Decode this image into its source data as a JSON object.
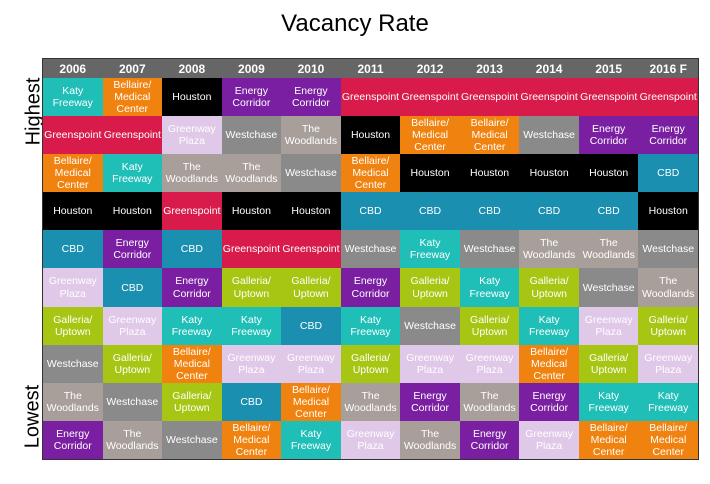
{
  "chart_data": {
    "type": "table",
    "title": "Vacancy Rate",
    "highest_label": "Highest",
    "lowest_label": "Lowest",
    "columns": [
      "2006",
      "2007",
      "2008",
      "2009",
      "2010",
      "2011",
      "2012",
      "2013",
      "2014",
      "2015",
      "2016 F"
    ],
    "rankings": [
      [
        "Katy\nFreeway",
        "Bellaire/\nMedical\nCenter",
        "Houston",
        "Energy\nCorridor",
        "Energy\nCorridor",
        "Greenspoint",
        "Greenspoint",
        "Greenspoint",
        "Greenspoint",
        "Greenspoint",
        "Greenspoint"
      ],
      [
        "Greenspoint",
        "Greenspoint",
        "Greenway\nPlaza",
        "Westchase",
        "The\nWoodlands",
        "Houston",
        "Bellaire/\nMedical\nCenter",
        "Bellaire/\nMedical\nCenter",
        "Westchase",
        "Energy\nCorridor",
        "Energy\nCorridor"
      ],
      [
        "Bellaire/\nMedical\nCenter",
        "Katy\nFreeway",
        "The\nWoodlands",
        "The\nWoodlands",
        "Westchase",
        "Bellaire/\nMedical\nCenter",
        "Houston",
        "Houston",
        "Houston",
        "Houston",
        "CBD"
      ],
      [
        "Houston",
        "Houston",
        "Greenspoint",
        "Houston",
        "Houston",
        "CBD",
        "CBD",
        "CBD",
        "CBD",
        "CBD",
        "Houston"
      ],
      [
        "CBD",
        "Energy\nCorridor",
        "CBD",
        "Greenspoint",
        "Greenspoint",
        "Westchase",
        "Katy\nFreeway",
        "Westchase",
        "The\nWoodlands",
        "The\nWoodlands",
        "Westchase"
      ],
      [
        "Greenway\nPlaza",
        "CBD",
        "Energy\nCorridor",
        "Galleria/\nUptown",
        "Galleria/\nUptown",
        "Energy\nCorridor",
        "Galleria/\nUptown",
        "Katy\nFreeway",
        "Galleria/\nUptown",
        "Westchase",
        "The\nWoodlands"
      ],
      [
        "Galleria/\nUptown",
        "Greenway\nPlaza",
        "Katy\nFreeway",
        "Katy\nFreeway",
        "CBD",
        "Katy\nFreeway",
        "Westchase",
        "Galleria/\nUptown",
        "Katy\nFreeway",
        "Greenway\nPlaza",
        "Galleria/\nUptown"
      ],
      [
        "Westchase",
        "Galleria/\nUptown",
        "Bellaire/\nMedical\nCenter",
        "Greenway\nPlaza",
        "Greenway\nPlaza",
        "Galleria/\nUptown",
        "Greenway\nPlaza",
        "Greenway\nPlaza",
        "Bellaire/\nMedical\nCenter",
        "Galleria/\nUptown",
        "Greenway\nPlaza"
      ],
      [
        "The\nWoodlands",
        "Westchase",
        "Galleria/\nUptown",
        "CBD",
        "Bellaire/\nMedical\nCenter",
        "The\nWoodlands",
        "Energy\nCorridor",
        "The\nWoodlands",
        "Energy\nCorridor",
        "Katy\nFreeway",
        "Katy\nFreeway"
      ],
      [
        "Energy\nCorridor",
        "The\nWoodlands",
        "Westchase",
        "Bellaire/\nMedical\nCenter",
        "Katy\nFreeway",
        "Greenway\nPlaza",
        "The\nWoodlands",
        "Energy\nCorridor",
        "Greenway\nPlaza",
        "Bellaire/\nMedical\nCenter",
        "Bellaire/\nMedical\nCenter"
      ]
    ],
    "submarket_colors": {
      "Katy Freeway": "#1fbfb8",
      "Bellaire/ Medical Center": "#f0820f",
      "Houston": "#000000",
      "Energy Corridor": "#7b1fa2",
      "Greenspoint": "#d81b4a",
      "Greenway Plaza": "#e0c8e8",
      "Westchase": "#8a8a8a",
      "The Woodlands": "#a89f9a",
      "CBD": "#1a8fb0",
      "Galleria/ Uptown": "#a7c613"
    }
  }
}
